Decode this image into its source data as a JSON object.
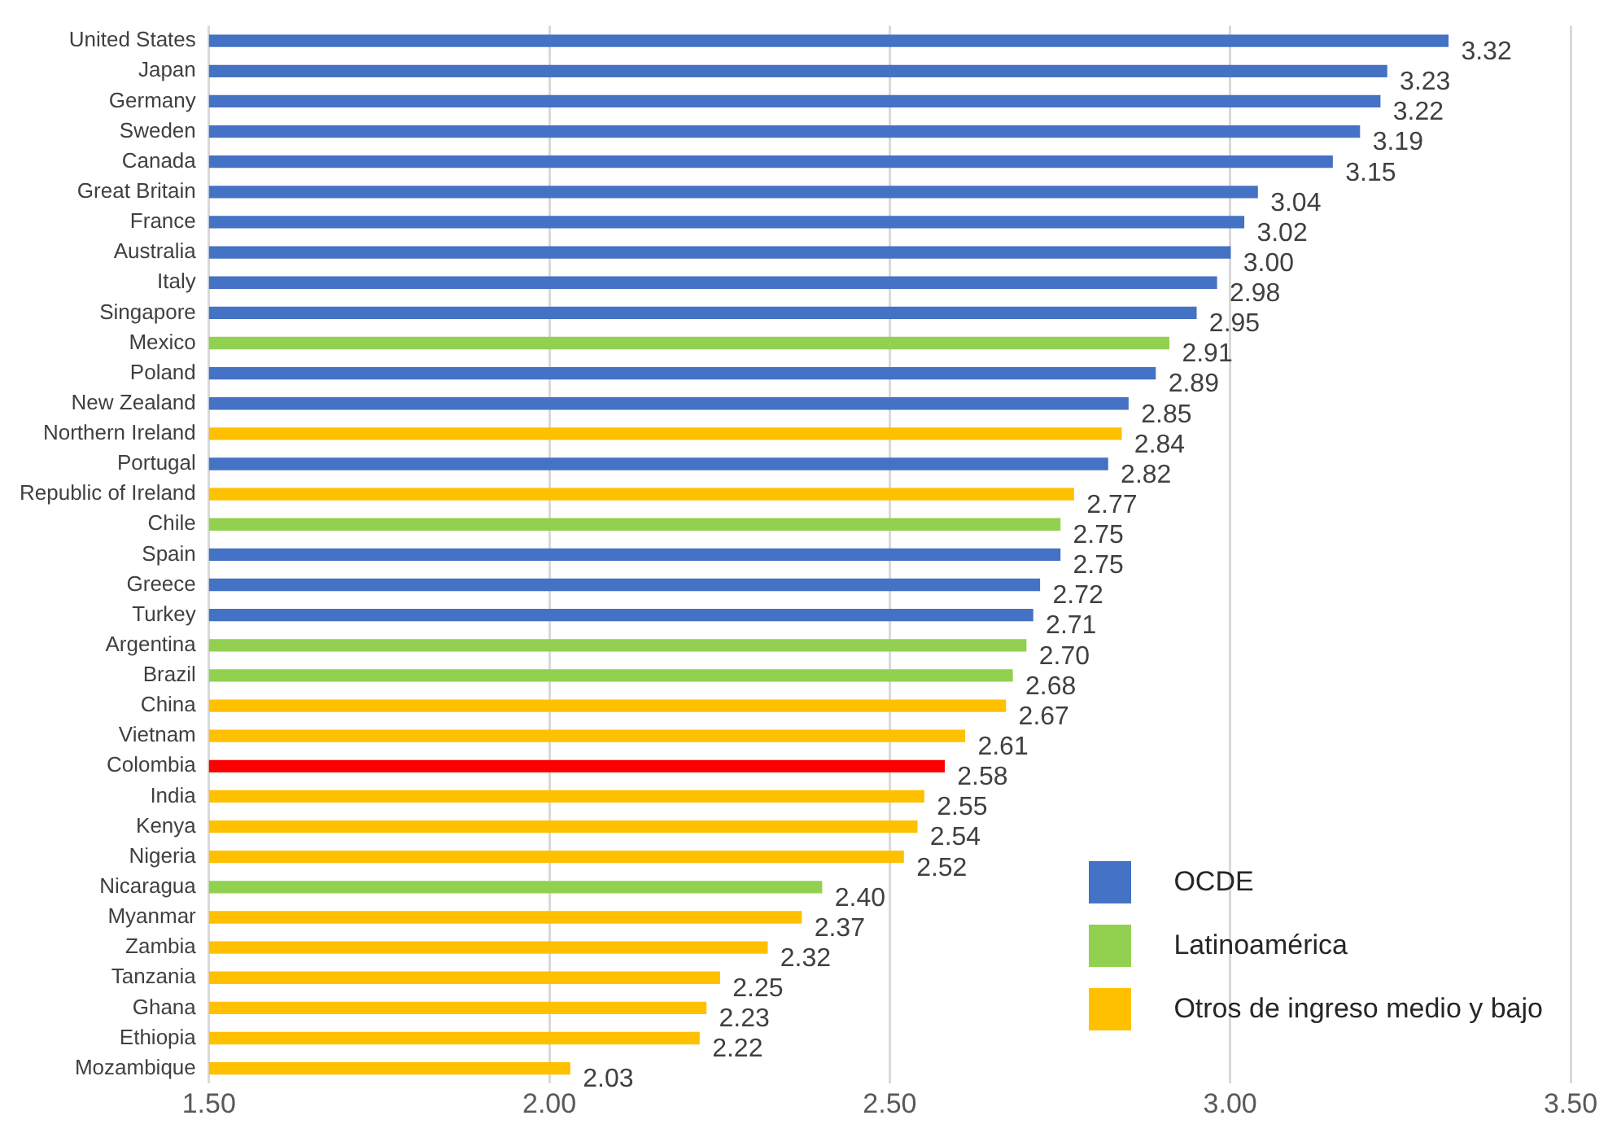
{
  "chart_data": {
    "type": "bar",
    "orientation": "horizontal",
    "stacked": true,
    "grid": "x",
    "legend": "bottom right",
    "categories": [
      "United States",
      "Japan",
      "Germany",
      "Sweden",
      "Canada",
      "Great Britain",
      "France",
      "Australia",
      "Italy",
      "Singapore",
      "Mexico",
      "Poland",
      "New Zealand",
      "Northern Ireland",
      "Portugal",
      "Republic of Ireland",
      "Chile",
      "Spain",
      "Greece",
      "Turkey",
      "Argentina",
      "Brazil",
      "China",
      "Vietnam",
      "Colombia",
      "India",
      "Kenya",
      "Nigeria",
      "Nicaragua",
      "Myanmar",
      "Zambia",
      "Tanzania",
      "Ghana",
      "Ethiopia",
      "Mozambique"
    ],
    "series": [
      {
        "name": "OCDE",
        "color": "#4472c4",
        "values": [
          3.32,
          3.23,
          3.22,
          3.19,
          3.15,
          3.04,
          3.02,
          3.0,
          2.98,
          2.95,
          null,
          2.89,
          2.85,
          null,
          2.82,
          null,
          null,
          2.75,
          2.72,
          2.71,
          null,
          null,
          null,
          null,
          null,
          null,
          null,
          null,
          null,
          null,
          null,
          null,
          null,
          null,
          null
        ],
        "value_labels": [
          "3.32",
          "3.23",
          "3.22",
          "3.19",
          "3.15",
          "3.04",
          "3.02",
          "3.00",
          "2.98",
          "2.95",
          null,
          "2.89",
          "2.85",
          null,
          "2.82",
          null,
          null,
          "2.75",
          "2.72",
          "2.71",
          null,
          null,
          null,
          null,
          null,
          null,
          null,
          null,
          null,
          null,
          null,
          null,
          null,
          null,
          null
        ]
      },
      {
        "name": "Latinoamérica",
        "color": "#92d050",
        "values": [
          null,
          null,
          null,
          null,
          null,
          null,
          null,
          null,
          null,
          null,
          2.91,
          null,
          null,
          null,
          null,
          null,
          2.75,
          null,
          null,
          null,
          2.7,
          2.68,
          null,
          null,
          null,
          null,
          null,
          null,
          2.4,
          null,
          null,
          null,
          null,
          null,
          null
        ],
        "value_labels": [
          null,
          null,
          null,
          null,
          null,
          null,
          null,
          null,
          null,
          null,
          "2.91",
          null,
          null,
          null,
          null,
          null,
          "2.75",
          null,
          null,
          null,
          "2.70",
          "2.68",
          null,
          null,
          null,
          null,
          null,
          null,
          "2.40",
          null,
          null,
          null,
          null,
          null,
          null
        ]
      },
      {
        "name": "Otros de ingreso medio y bajo",
        "color": "#ffc000",
        "values": [
          null,
          null,
          null,
          null,
          null,
          null,
          null,
          null,
          null,
          null,
          null,
          null,
          null,
          2.84,
          null,
          2.77,
          null,
          null,
          null,
          null,
          null,
          null,
          2.67,
          2.61,
          null,
          2.55,
          2.54,
          2.52,
          null,
          2.37,
          2.32,
          2.25,
          2.23,
          2.22,
          2.03
        ],
        "value_labels": [
          null,
          null,
          null,
          null,
          null,
          null,
          null,
          null,
          null,
          null,
          null,
          null,
          null,
          "2.84",
          null,
          "2.77",
          null,
          null,
          null,
          null,
          null,
          null,
          "2.67",
          "2.61",
          null,
          "2.55",
          "2.54",
          "2.52",
          null,
          "2.37",
          "2.32",
          "2.25",
          "2.23",
          "2.22",
          "2.03"
        ]
      },
      {
        "color": "#ff0000",
        "values": [
          null,
          null,
          null,
          null,
          null,
          null,
          null,
          null,
          null,
          null,
          null,
          null,
          null,
          null,
          null,
          null,
          null,
          null,
          null,
          null,
          null,
          null,
          null,
          null,
          2.58,
          null,
          null,
          null,
          null,
          null,
          null,
          null,
          null,
          null,
          null
        ],
        "value_labels": [
          null,
          null,
          null,
          null,
          null,
          null,
          null,
          null,
          null,
          null,
          null,
          null,
          null,
          null,
          null,
          null,
          null,
          null,
          null,
          null,
          null,
          null,
          null,
          null,
          "2.58",
          null,
          null,
          null,
          null,
          null,
          null,
          null,
          null,
          null,
          null
        ]
      }
    ],
    "xlim": [
      1.5,
      3.5
    ],
    "xticks": [
      {
        "value": 1.5,
        "label": "1.50"
      },
      {
        "value": 2,
        "label": "2.00"
      },
      {
        "value": 2.5,
        "label": "2.50"
      },
      {
        "value": 3,
        "label": "3.00"
      },
      {
        "value": 3.5,
        "label": "3.50"
      }
    ]
  }
}
